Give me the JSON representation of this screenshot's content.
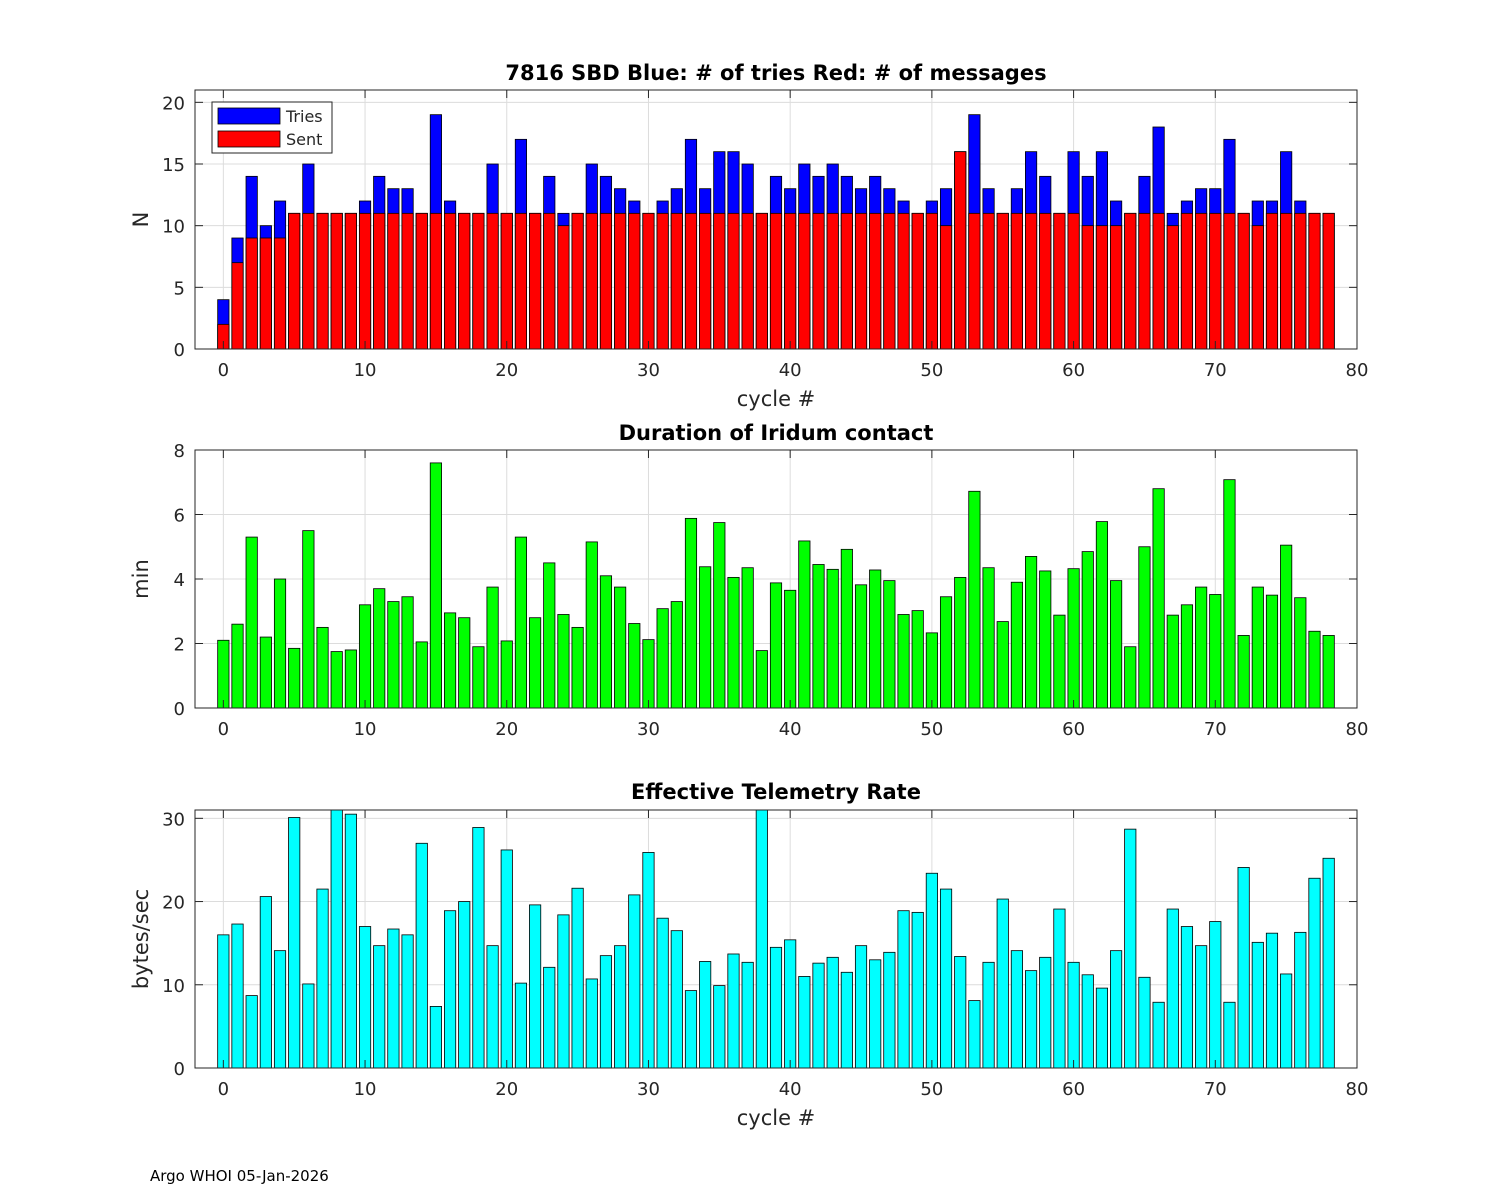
{
  "footer": "Argo WHOI 05-Jan-2026",
  "chart_data": [
    {
      "type": "bar",
      "title": "7816 SBD  Blue: # of tries   Red: # of messages",
      "xlabel": "cycle #",
      "ylabel": "N",
      "xlim": [
        -2,
        80
      ],
      "ylim": [
        0,
        21
      ],
      "xticks": [
        0,
        10,
        20,
        30,
        40,
        50,
        60,
        70,
        80
      ],
      "yticks": [
        0,
        5,
        10,
        15,
        20
      ],
      "grid": true,
      "legend_position": "top-left",
      "x": [
        0,
        1,
        2,
        3,
        4,
        5,
        6,
        7,
        8,
        9,
        10,
        11,
        12,
        13,
        14,
        15,
        16,
        17,
        18,
        19,
        20,
        21,
        22,
        23,
        24,
        25,
        26,
        27,
        28,
        29,
        30,
        31,
        32,
        33,
        34,
        35,
        36,
        37,
        38,
        39,
        40,
        41,
        42,
        43,
        44,
        45,
        46,
        47,
        48,
        49,
        50,
        51,
        52,
        53,
        54,
        55,
        56,
        57,
        58,
        59,
        60,
        61,
        62,
        63,
        64,
        65,
        66,
        67,
        68,
        69,
        70,
        71,
        72,
        73,
        74,
        75,
        76,
        77,
        78
      ],
      "series": [
        {
          "name": "Tries",
          "color": "#0000ff",
          "values": [
            4,
            9,
            14,
            10,
            12,
            11,
            15,
            11,
            11,
            11,
            12,
            14,
            13,
            13,
            11,
            19,
            12,
            11,
            11,
            15,
            11,
            17,
            11,
            14,
            11,
            11,
            15,
            14,
            13,
            12,
            11,
            12,
            13,
            17,
            13,
            16,
            16,
            15,
            11,
            14,
            13,
            15,
            14,
            15,
            14,
            13,
            14,
            13,
            12,
            11,
            12,
            13,
            16,
            19,
            13,
            11,
            13,
            16,
            14,
            11,
            16,
            14,
            16,
            12,
            11,
            14,
            18,
            11,
            12,
            13,
            13,
            17,
            11,
            12,
            12,
            16,
            12,
            11,
            11
          ]
        },
        {
          "name": "Sent",
          "color": "#ff0000",
          "values": [
            2,
            7,
            9,
            9,
            9,
            11,
            11,
            11,
            11,
            11,
            11,
            11,
            11,
            11,
            11,
            11,
            11,
            11,
            11,
            11,
            11,
            11,
            11,
            11,
            10,
            11,
            11,
            11,
            11,
            11,
            11,
            11,
            11,
            11,
            11,
            11,
            11,
            11,
            11,
            11,
            11,
            11,
            11,
            11,
            11,
            11,
            11,
            11,
            11,
            11,
            11,
            10,
            16,
            11,
            11,
            11,
            11,
            11,
            11,
            11,
            11,
            10,
            10,
            10,
            11,
            11,
            11,
            10,
            11,
            11,
            11,
            11,
            11,
            10,
            11,
            11,
            11,
            11,
            11
          ]
        }
      ]
    },
    {
      "type": "bar",
      "title": "Duration of Iridum contact",
      "xlabel": "",
      "ylabel": "min",
      "xlim": [
        -2,
        80
      ],
      "ylim": [
        0,
        8
      ],
      "xticks": [
        0,
        10,
        20,
        30,
        40,
        50,
        60,
        70,
        80
      ],
      "yticks": [
        0,
        2,
        4,
        6,
        8
      ],
      "grid": true,
      "x": [
        0,
        1,
        2,
        3,
        4,
        5,
        6,
        7,
        8,
        9,
        10,
        11,
        12,
        13,
        14,
        15,
        16,
        17,
        18,
        19,
        20,
        21,
        22,
        23,
        24,
        25,
        26,
        27,
        28,
        29,
        30,
        31,
        32,
        33,
        34,
        35,
        36,
        37,
        38,
        39,
        40,
        41,
        42,
        43,
        44,
        45,
        46,
        47,
        48,
        49,
        50,
        51,
        52,
        53,
        54,
        55,
        56,
        57,
        58,
        59,
        60,
        61,
        62,
        63,
        64,
        65,
        66,
        67,
        68,
        69,
        70,
        71,
        72,
        73,
        74,
        75,
        76,
        77,
        78
      ],
      "series": [
        {
          "name": "duration",
          "color": "#00ff00",
          "values": [
            2.1,
            2.6,
            5.3,
            2.2,
            4.0,
            1.85,
            5.5,
            2.5,
            1.75,
            1.8,
            3.2,
            3.7,
            3.3,
            3.45,
            2.05,
            7.6,
            2.95,
            2.8,
            1.9,
            3.75,
            2.08,
            5.3,
            2.8,
            4.5,
            2.9,
            2.5,
            5.15,
            4.1,
            3.75,
            2.62,
            2.12,
            3.08,
            3.3,
            5.88,
            4.38,
            5.75,
            4.05,
            4.35,
            1.78,
            3.88,
            3.65,
            5.18,
            4.45,
            4.3,
            4.92,
            3.82,
            4.28,
            3.95,
            2.9,
            3.02,
            2.33,
            3.45,
            4.05,
            6.72,
            4.35,
            2.68,
            3.9,
            4.7,
            4.25,
            2.88,
            4.32,
            4.85,
            5.78,
            3.95,
            1.9,
            5.0,
            6.8,
            2.88,
            3.2,
            3.75,
            3.52,
            7.08,
            2.25,
            3.75,
            3.5,
            5.05,
            3.42,
            2.38,
            2.25
          ]
        }
      ]
    },
    {
      "type": "bar",
      "title": "Effective Telemetry Rate",
      "xlabel": "cycle #",
      "ylabel": "bytes/sec",
      "xlim": [
        -2,
        80
      ],
      "ylim": [
        0,
        31
      ],
      "xticks": [
        0,
        10,
        20,
        30,
        40,
        50,
        60,
        70,
        80
      ],
      "yticks": [
        0,
        10,
        20,
        30
      ],
      "grid": true,
      "x": [
        0,
        1,
        2,
        3,
        4,
        5,
        6,
        7,
        8,
        9,
        10,
        11,
        12,
        13,
        14,
        15,
        16,
        17,
        18,
        19,
        20,
        21,
        22,
        23,
        24,
        25,
        26,
        27,
        28,
        29,
        30,
        31,
        32,
        33,
        34,
        35,
        36,
        37,
        38,
        39,
        40,
        41,
        42,
        43,
        44,
        45,
        46,
        47,
        48,
        49,
        50,
        51,
        52,
        53,
        54,
        55,
        56,
        57,
        58,
        59,
        60,
        61,
        62,
        63,
        64,
        65,
        66,
        67,
        68,
        69,
        70,
        71,
        72,
        73,
        74,
        75,
        76,
        77,
        78
      ],
      "series": [
        {
          "name": "rate",
          "color": "#00ffff",
          "values": [
            16,
            17.3,
            8.7,
            20.6,
            14.1,
            30.1,
            10.1,
            21.5,
            31,
            30.5,
            17,
            14.7,
            16.7,
            16,
            27,
            7.4,
            18.9,
            20,
            28.9,
            14.7,
            26.2,
            10.2,
            19.6,
            12.1,
            18.4,
            21.6,
            10.7,
            13.5,
            14.7,
            20.8,
            25.9,
            18,
            16.5,
            9.3,
            12.8,
            9.9,
            13.7,
            12.7,
            31,
            14.5,
            15.4,
            11,
            12.6,
            13.3,
            11.5,
            14.7,
            13,
            13.9,
            18.9,
            18.7,
            23.4,
            21.5,
            13.4,
            8.1,
            12.7,
            20.3,
            14.1,
            11.7,
            13.3,
            19.1,
            12.7,
            11.2,
            9.6,
            14.1,
            28.7,
            10.9,
            7.9,
            19.1,
            17,
            14.7,
            17.6,
            7.9,
            24.1,
            15.1,
            16.2,
            11.3,
            16.3,
            22.8,
            25.2
          ]
        }
      ]
    }
  ]
}
